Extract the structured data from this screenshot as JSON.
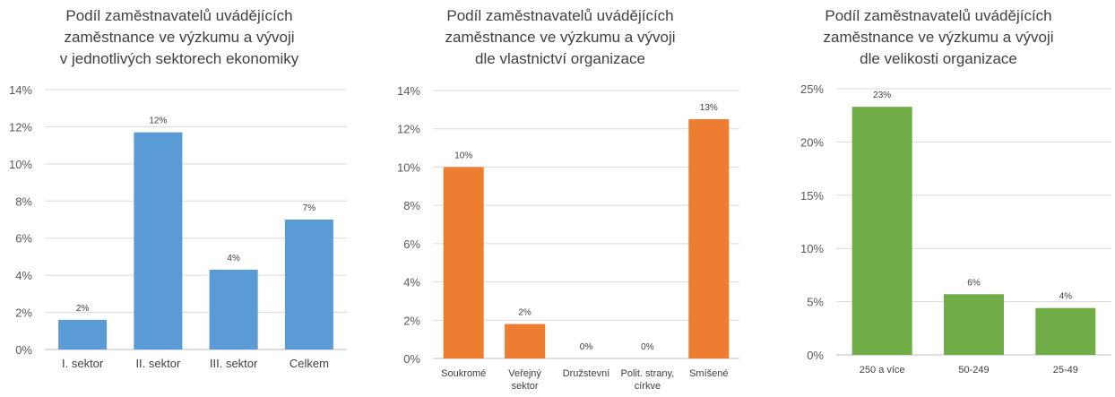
{
  "chart_data": [
    {
      "type": "bar",
      "title_lines": [
        "Podíl zaměstnavatelů uvádějících",
        "zaměstnance ve výzkumu a vývoji",
        "v jednotlivých sektorech ekonomiky"
      ],
      "categories": [
        [
          "I. sektor"
        ],
        [
          "II. sektor"
        ],
        [
          "III. sektor"
        ],
        [
          "Celkem"
        ]
      ],
      "values": [
        1.6,
        11.7,
        4.3,
        7.0
      ],
      "data_labels": [
        "2%",
        "12%",
        "4%",
        "7%"
      ],
      "y_ticks": [
        "0%",
        "2%",
        "4%",
        "6%",
        "8%",
        "10%",
        "12%",
        "14%"
      ],
      "ylim": [
        0,
        14
      ],
      "grid": true,
      "color": "#5B9BD5"
    },
    {
      "type": "bar",
      "title_lines": [
        "Podíl zaměstnavatelů uvádějících",
        "zaměstnance ve výzkumu a vývoji",
        "dle vlastnictví organizace"
      ],
      "categories": [
        [
          "Soukromé"
        ],
        [
          "Veřejný",
          "sektor"
        ],
        [
          "Družstevní"
        ],
        [
          "Polit. strany,",
          "církve"
        ],
        [
          "Smíšené"
        ]
      ],
      "values": [
        10.0,
        1.8,
        0,
        0,
        12.5
      ],
      "data_labels": [
        "10%",
        "2%",
        "0%",
        "0%",
        "13%"
      ],
      "y_ticks": [
        "0%",
        "2%",
        "4%",
        "6%",
        "8%",
        "10%",
        "12%",
        "14%"
      ],
      "ylim": [
        0,
        14
      ],
      "grid": true,
      "color": "#ED7D31"
    },
    {
      "type": "bar",
      "title_lines": [
        "Podíl zaměstnavatelů uvádějících",
        "zaměstnance ve výzkumu a vývoji",
        "dle velikosti organizace"
      ],
      "categories": [
        [
          "250 a více"
        ],
        [
          "50-249"
        ],
        [
          "25-49"
        ]
      ],
      "values": [
        23.3,
        5.7,
        4.4
      ],
      "data_labels": [
        "23%",
        "6%",
        "4%"
      ],
      "y_ticks": [
        "0%",
        "5%",
        "10%",
        "15%",
        "20%",
        "25%"
      ],
      "ylim": [
        0,
        25
      ],
      "grid": true,
      "color": "#70AD47"
    }
  ]
}
